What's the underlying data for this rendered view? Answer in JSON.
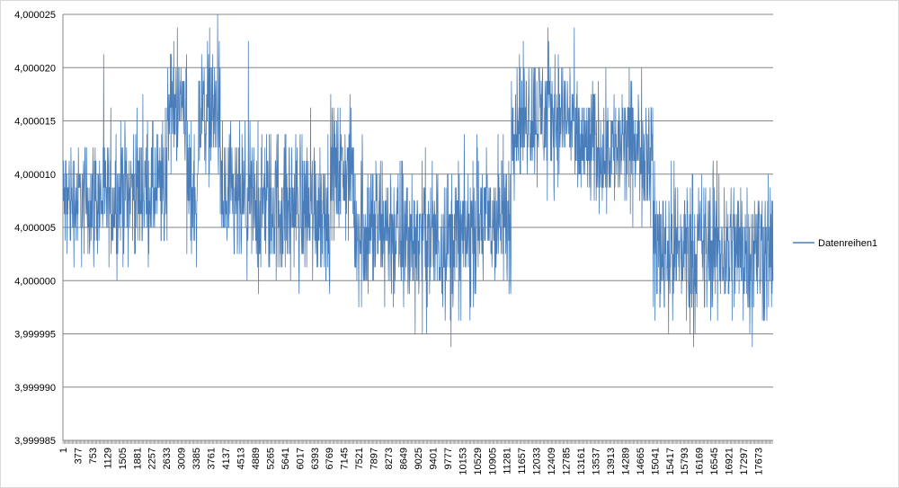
{
  "chart_data": {
    "type": "line",
    "title": "",
    "xlabel": "",
    "ylabel": "",
    "ylim": [
      3.999985,
      4.000025
    ],
    "yticks": [
      "4,000025",
      "4,000020",
      "4,000015",
      "4,000010",
      "4,000005",
      "4,000000",
      "3,999995",
      "3,999990",
      "3,999985"
    ],
    "xticks": [
      "1",
      "377",
      "753",
      "1129",
      "1505",
      "1881",
      "2257",
      "2633",
      "3009",
      "3385",
      "3761",
      "4137",
      "4513",
      "4889",
      "5265",
      "5641",
      "6017",
      "6393",
      "6769",
      "7145",
      "7521",
      "7897",
      "8273",
      "8649",
      "9025",
      "9401",
      "9777",
      "10153",
      "10529",
      "10905",
      "11281",
      "11657",
      "12033",
      "12409",
      "12785",
      "13161",
      "13537",
      "13913",
      "14289",
      "14665",
      "15041",
      "15417",
      "15793",
      "16169",
      "16545",
      "16921",
      "17297",
      "17673"
    ],
    "xlim": [
      1,
      18050
    ],
    "grid": true,
    "legend_position": "right",
    "series": [
      {
        "name": "Datenreihen1",
        "color": "#4a7ebb",
        "segments": [
          {
            "x_start": 1,
            "x_end": 1450,
            "mean": 4.0000075,
            "noise": 2.8e-06
          },
          {
            "x_start": 1450,
            "x_end": 2650,
            "mean": 4.0000085,
            "noise": 3e-06
          },
          {
            "x_start": 2650,
            "x_end": 3150,
            "mean": 4.0000165,
            "noise": 2.8e-06
          },
          {
            "x_start": 3150,
            "x_end": 3450,
            "mean": 4.0000085,
            "noise": 3.5e-06
          },
          {
            "x_start": 3450,
            "x_end": 4000,
            "mean": 4.000016,
            "noise": 3e-06
          },
          {
            "x_start": 4000,
            "x_end": 6800,
            "mean": 4.000007,
            "noise": 3.5e-06
          },
          {
            "x_start": 6800,
            "x_end": 7400,
            "mean": 4.00001,
            "noise": 3e-06
          },
          {
            "x_start": 7400,
            "x_end": 8400,
            "mean": 4.000005,
            "noise": 3.5e-06
          },
          {
            "x_start": 8400,
            "x_end": 10400,
            "mean": 4.000004,
            "noise": 3.5e-06
          },
          {
            "x_start": 10400,
            "x_end": 11400,
            "mean": 4.0000055,
            "noise": 3.5e-06
          },
          {
            "x_start": 11400,
            "x_end": 13000,
            "mean": 4.0000155,
            "noise": 3e-06
          },
          {
            "x_start": 13000,
            "x_end": 15000,
            "mean": 4.0000125,
            "noise": 3e-06
          },
          {
            "x_start": 15000,
            "x_end": 18050,
            "mean": 4.000003,
            "noise": 3.5e-06
          }
        ]
      }
    ]
  }
}
